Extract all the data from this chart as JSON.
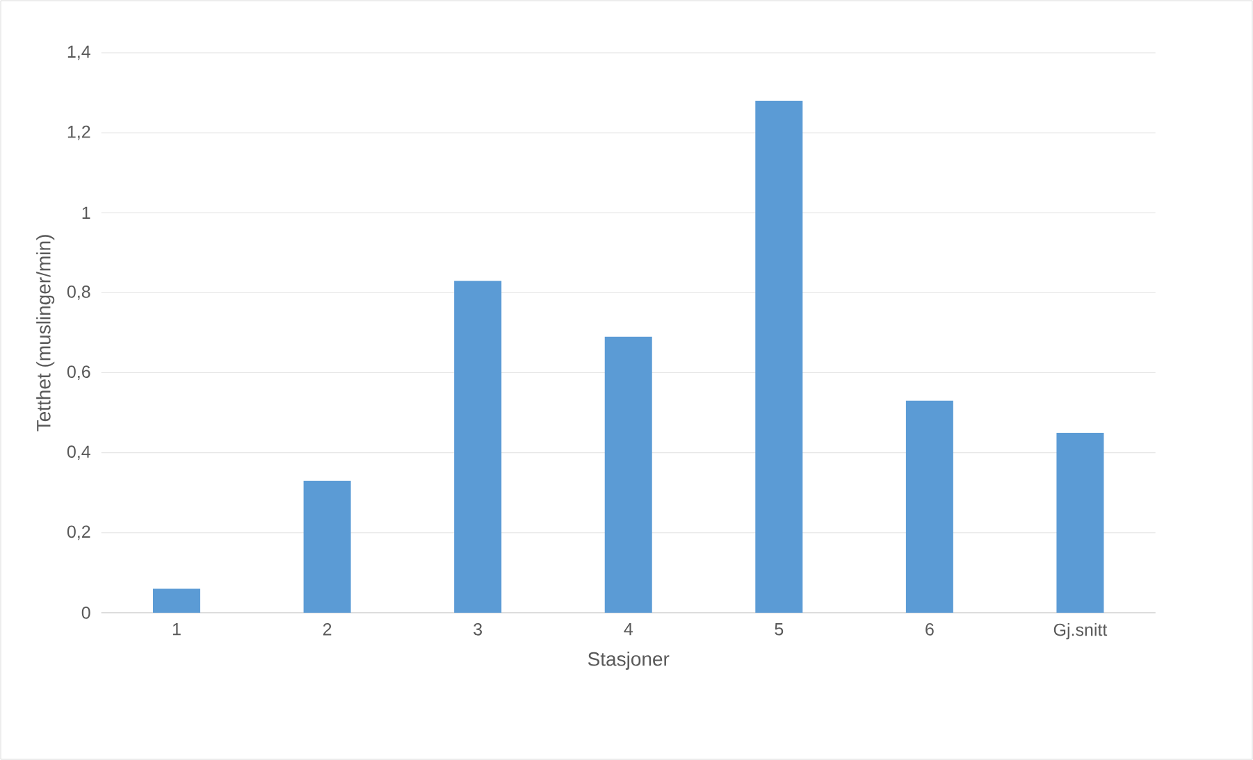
{
  "chart_data": {
    "type": "bar",
    "xlabel": "Stasjoner",
    "ylabel": "Tetthet (muslinger/min)",
    "categories": [
      "1",
      "2",
      "3",
      "4",
      "5",
      "6",
      "Gj.snitt"
    ],
    "values": [
      0.06,
      0.33,
      0.83,
      0.69,
      1.28,
      0.53,
      0.45
    ],
    "color": "#5b9bd5",
    "ylim": [
      0,
      1.4
    ],
    "yticks": [
      0,
      {
        "value": 0.2,
        "label": "0,2"
      },
      {
        "value": 0.4,
        "label": "0,4"
      },
      {
        "value": 0.6,
        "label": "0,6"
      },
      {
        "value": 0.8,
        "label": "0,8"
      },
      1,
      {
        "value": 1.2,
        "label": "1,2"
      },
      {
        "value": 1.4,
        "label": "1,4"
      }
    ],
    "grid": "y"
  }
}
